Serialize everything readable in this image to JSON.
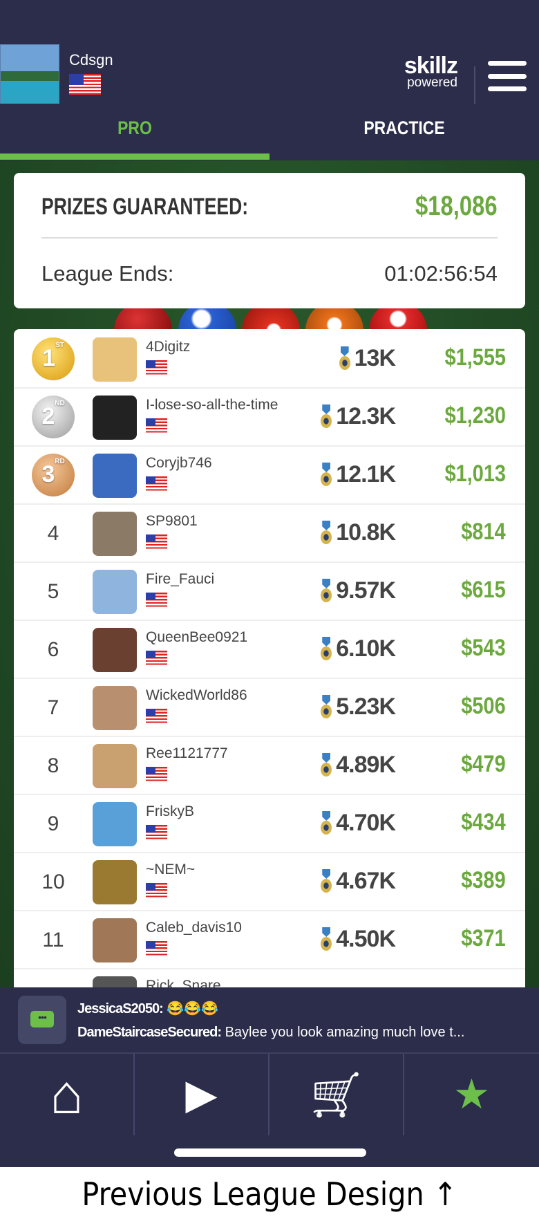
{
  "user": {
    "name": "Cdsgn",
    "country": "US"
  },
  "brand": {
    "line1": "skillz",
    "line2": "powered"
  },
  "tabs": [
    {
      "label": "PRO",
      "active": true
    },
    {
      "label": "PRACTICE",
      "active": false
    }
  ],
  "prizes": {
    "label": "PRIZES GUARANTEED:",
    "value": "$18,086",
    "ends_label": "League Ends:",
    "ends_value": "01:02:56:54"
  },
  "leaderboard": [
    {
      "rank": "1",
      "suffix": "ST",
      "name": "4Digitz",
      "score": "13K",
      "prize": "$1,555"
    },
    {
      "rank": "2",
      "suffix": "ND",
      "name": "I-lose-so-all-the-time",
      "score": "12.3K",
      "prize": "$1,230"
    },
    {
      "rank": "3",
      "suffix": "RD",
      "name": "Coryjb746",
      "score": "12.1K",
      "prize": "$1,013"
    },
    {
      "rank": "4",
      "name": "SP9801",
      "score": "10.8K",
      "prize": "$814"
    },
    {
      "rank": "5",
      "name": "Fire_Fauci",
      "score": "9.57K",
      "prize": "$615"
    },
    {
      "rank": "6",
      "name": "QueenBee0921",
      "score": "6.10K",
      "prize": "$543"
    },
    {
      "rank": "7",
      "name": "WickedWorld86",
      "score": "5.23K",
      "prize": "$506"
    },
    {
      "rank": "8",
      "name": "Ree1121777",
      "score": "4.89K",
      "prize": "$479"
    },
    {
      "rank": "9",
      "name": "FriskyB",
      "score": "4.70K",
      "prize": "$434"
    },
    {
      "rank": "10",
      "name": "~NEM~",
      "score": "4.67K",
      "prize": "$389"
    },
    {
      "rank": "11",
      "name": "Caleb_davis10",
      "score": "4.50K",
      "prize": "$371"
    },
    {
      "rank": "",
      "name": "Rick_Snare",
      "score": "",
      "prize": ""
    }
  ],
  "chat": {
    "messages": [
      {
        "user": "JessicaS2050:",
        "text": "😂😂😂"
      },
      {
        "user": "DameStaircaseSecured:",
        "text": "Baylee you look amazing much love t..."
      }
    ]
  },
  "nav": [
    {
      "icon": "home-icon",
      "glyph": "⌂"
    },
    {
      "icon": "play-icon",
      "glyph": "▶"
    },
    {
      "icon": "cart-icon",
      "glyph": "🛒"
    },
    {
      "icon": "medal-icon",
      "glyph": "★"
    }
  ],
  "caption": "Previous League Design ↑",
  "colors": {
    "header": "#2b2d4b",
    "accent": "#6cc04a",
    "prize": "#6ba83e",
    "felt": "#1f4a25"
  }
}
